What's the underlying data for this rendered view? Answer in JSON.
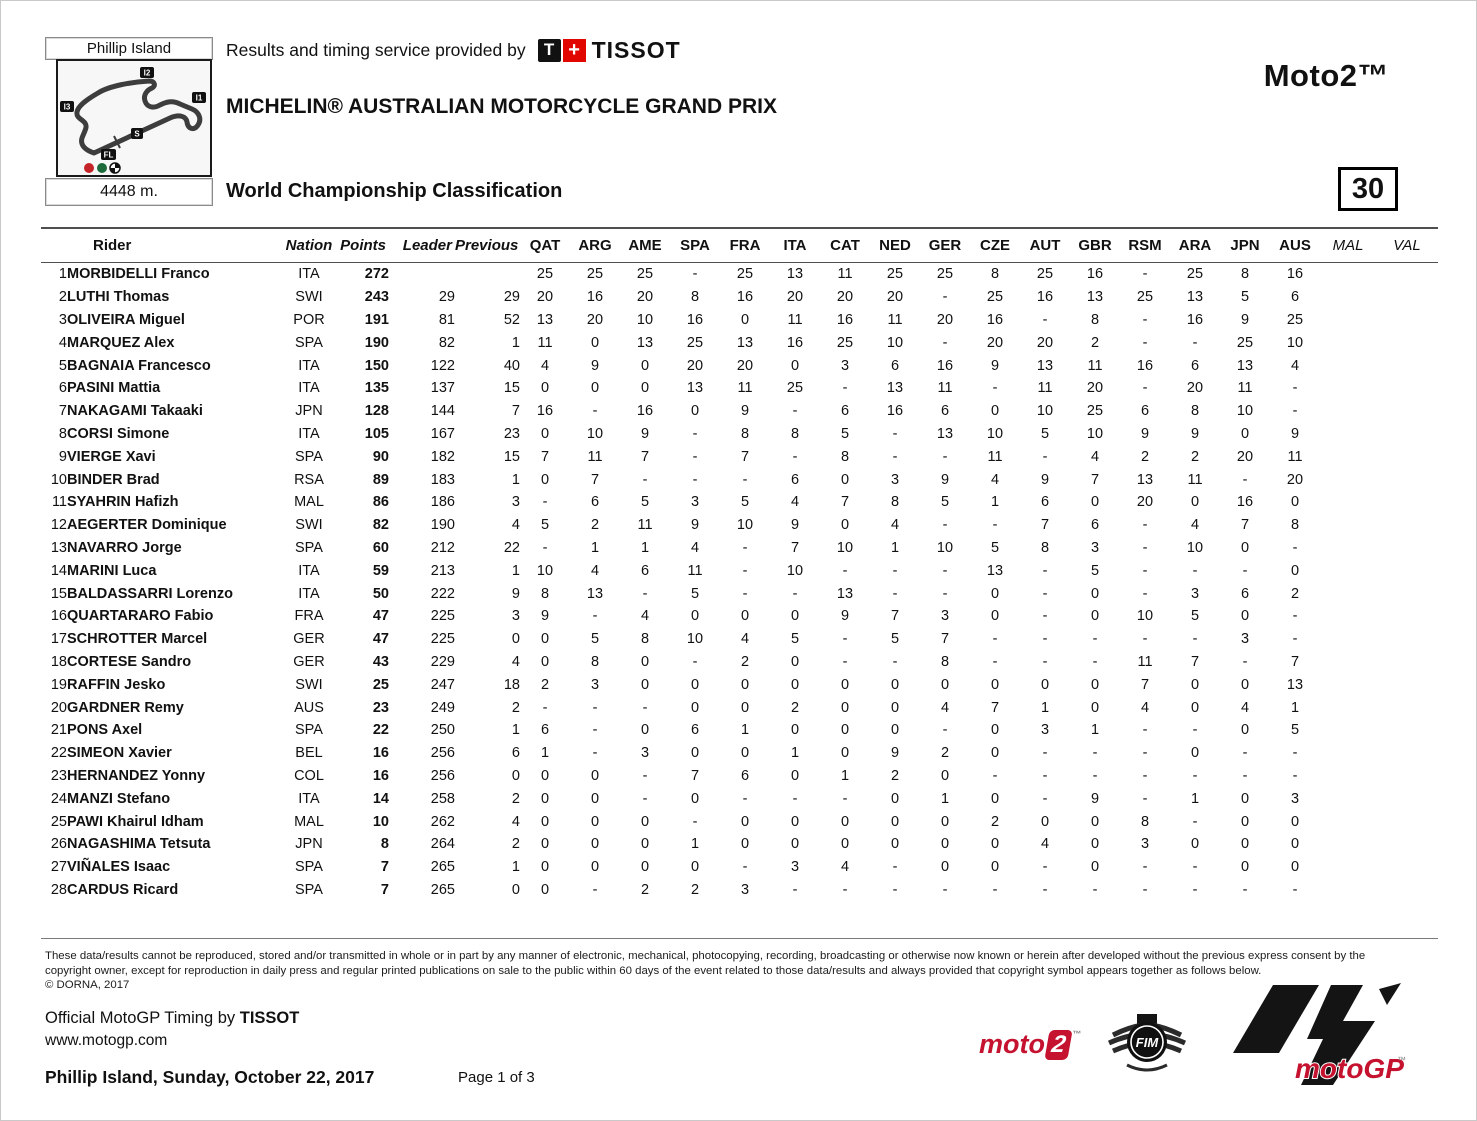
{
  "header": {
    "circuit_name": "Phillip Island",
    "track_length": "4448 m.",
    "service_text": "Results and timing service provided by",
    "tissot_t": "T",
    "tissot_plus": "+",
    "tissot_name": "TISSOT",
    "event_title": "MICHELIN® AUSTRALIAN MOTORCYCLE GRAND PRIX",
    "class_label": "Moto2™",
    "classification_title": "World Championship Classification",
    "sheet_number": "30",
    "map_labels": {
      "i2": "I2",
      "i3": "I3",
      "i1": "I1",
      "s": "S",
      "fl": "FL"
    }
  },
  "table": {
    "rider_header": "Rider",
    "info_columns": [
      "Nation",
      "Points",
      "Leader",
      "Previous"
    ],
    "race_columns": [
      "QAT",
      "ARG",
      "AME",
      "SPA",
      "FRA",
      "ITA",
      "CAT",
      "NED",
      "GER",
      "CZE",
      "AUT",
      "GBR",
      "RSM",
      "ARA",
      "JPN",
      "AUS"
    ],
    "future_race_columns": [
      "MAL",
      "VAL"
    ],
    "rows": [
      {
        "pos": "1",
        "rider": "MORBIDELLI Franco",
        "nation": "ITA",
        "points": "272",
        "leader": "",
        "previous": "",
        "results": [
          "25",
          "25",
          "25",
          "-",
          "25",
          "13",
          "11",
          "25",
          "25",
          "8",
          "25",
          "16",
          "-",
          "25",
          "8",
          "16"
        ]
      },
      {
        "pos": "2",
        "rider": "LUTHI Thomas",
        "nation": "SWI",
        "points": "243",
        "leader": "29",
        "previous": "29",
        "results": [
          "20",
          "16",
          "20",
          "8",
          "16",
          "20",
          "20",
          "20",
          "-",
          "25",
          "16",
          "13",
          "25",
          "13",
          "5",
          "6"
        ]
      },
      {
        "pos": "3",
        "rider": "OLIVEIRA Miguel",
        "nation": "POR",
        "points": "191",
        "leader": "81",
        "previous": "52",
        "results": [
          "13",
          "20",
          "10",
          "16",
          "0",
          "11",
          "16",
          "11",
          "20",
          "16",
          "-",
          "8",
          "-",
          "16",
          "9",
          "25"
        ]
      },
      {
        "pos": "4",
        "rider": "MARQUEZ Alex",
        "nation": "SPA",
        "points": "190",
        "leader": "82",
        "previous": "1",
        "results": [
          "11",
          "0",
          "13",
          "25",
          "13",
          "16",
          "25",
          "10",
          "-",
          "20",
          "20",
          "2",
          "-",
          "-",
          "25",
          "10"
        ]
      },
      {
        "pos": "5",
        "rider": "BAGNAIA Francesco",
        "nation": "ITA",
        "points": "150",
        "leader": "122",
        "previous": "40",
        "results": [
          "4",
          "9",
          "0",
          "20",
          "20",
          "0",
          "3",
          "6",
          "16",
          "9",
          "13",
          "11",
          "16",
          "6",
          "13",
          "4"
        ]
      },
      {
        "pos": "6",
        "rider": "PASINI Mattia",
        "nation": "ITA",
        "points": "135",
        "leader": "137",
        "previous": "15",
        "results": [
          "0",
          "0",
          "0",
          "13",
          "11",
          "25",
          "-",
          "13",
          "11",
          "-",
          "11",
          "20",
          "-",
          "20",
          "11",
          "-"
        ]
      },
      {
        "pos": "7",
        "rider": "NAKAGAMI Takaaki",
        "nation": "JPN",
        "points": "128",
        "leader": "144",
        "previous": "7",
        "results": [
          "16",
          "-",
          "16",
          "0",
          "9",
          "-",
          "6",
          "16",
          "6",
          "0",
          "10",
          "25",
          "6",
          "8",
          "10",
          "-"
        ]
      },
      {
        "pos": "8",
        "rider": "CORSI Simone",
        "nation": "ITA",
        "points": "105",
        "leader": "167",
        "previous": "23",
        "results": [
          "0",
          "10",
          "9",
          "-",
          "8",
          "8",
          "5",
          "-",
          "13",
          "10",
          "5",
          "10",
          "9",
          "9",
          "0",
          "9"
        ]
      },
      {
        "pos": "9",
        "rider": "VIERGE Xavi",
        "nation": "SPA",
        "points": "90",
        "leader": "182",
        "previous": "15",
        "results": [
          "7",
          "11",
          "7",
          "-",
          "7",
          "-",
          "8",
          "-",
          "-",
          "11",
          "-",
          "4",
          "2",
          "2",
          "20",
          "11"
        ]
      },
      {
        "pos": "10",
        "rider": "BINDER Brad",
        "nation": "RSA",
        "points": "89",
        "leader": "183",
        "previous": "1",
        "results": [
          "0",
          "7",
          "-",
          "-",
          "-",
          "6",
          "0",
          "3",
          "9",
          "4",
          "9",
          "7",
          "13",
          "11",
          "-",
          "20"
        ]
      },
      {
        "pos": "11",
        "rider": "SYAHRIN Hafizh",
        "nation": "MAL",
        "points": "86",
        "leader": "186",
        "previous": "3",
        "results": [
          "-",
          "6",
          "5",
          "3",
          "5",
          "4",
          "7",
          "8",
          "5",
          "1",
          "6",
          "0",
          "20",
          "0",
          "16",
          "0"
        ]
      },
      {
        "pos": "12",
        "rider": "AEGERTER Dominique",
        "nation": "SWI",
        "points": "82",
        "leader": "190",
        "previous": "4",
        "results": [
          "5",
          "2",
          "11",
          "9",
          "10",
          "9",
          "0",
          "4",
          "-",
          "-",
          "7",
          "6",
          "-",
          "4",
          "7",
          "8"
        ]
      },
      {
        "pos": "13",
        "rider": "NAVARRO Jorge",
        "nation": "SPA",
        "points": "60",
        "leader": "212",
        "previous": "22",
        "results": [
          "-",
          "1",
          "1",
          "4",
          "-",
          "7",
          "10",
          "1",
          "10",
          "5",
          "8",
          "3",
          "-",
          "10",
          "0",
          "-"
        ]
      },
      {
        "pos": "14",
        "rider": "MARINI Luca",
        "nation": "ITA",
        "points": "59",
        "leader": "213",
        "previous": "1",
        "results": [
          "10",
          "4",
          "6",
          "11",
          "-",
          "10",
          "-",
          "-",
          "-",
          "13",
          "-",
          "5",
          "-",
          "-",
          "-",
          "0"
        ]
      },
      {
        "pos": "15",
        "rider": "BALDASSARRI Lorenzo",
        "nation": "ITA",
        "points": "50",
        "leader": "222",
        "previous": "9",
        "results": [
          "8",
          "13",
          "-",
          "5",
          "-",
          "-",
          "13",
          "-",
          "-",
          "0",
          "-",
          "0",
          "-",
          "3",
          "6",
          "2"
        ]
      },
      {
        "pos": "16",
        "rider": "QUARTARARO Fabio",
        "nation": "FRA",
        "points": "47",
        "leader": "225",
        "previous": "3",
        "results": [
          "9",
          "-",
          "4",
          "0",
          "0",
          "0",
          "9",
          "7",
          "3",
          "0",
          "-",
          "0",
          "10",
          "5",
          "0",
          "-"
        ]
      },
      {
        "pos": "17",
        "rider": "SCHROTTER Marcel",
        "nation": "GER",
        "points": "47",
        "leader": "225",
        "previous": "0",
        "results": [
          "0",
          "5",
          "8",
          "10",
          "4",
          "5",
          "-",
          "5",
          "7",
          "-",
          "-",
          "-",
          "-",
          "-",
          "3",
          "-"
        ]
      },
      {
        "pos": "18",
        "rider": "CORTESE Sandro",
        "nation": "GER",
        "points": "43",
        "leader": "229",
        "previous": "4",
        "results": [
          "0",
          "8",
          "0",
          "-",
          "2",
          "0",
          "-",
          "-",
          "8",
          "-",
          "-",
          "-",
          "11",
          "7",
          "-",
          "7"
        ]
      },
      {
        "pos": "19",
        "rider": "RAFFIN Jesko",
        "nation": "SWI",
        "points": "25",
        "leader": "247",
        "previous": "18",
        "results": [
          "2",
          "3",
          "0",
          "0",
          "0",
          "0",
          "0",
          "0",
          "0",
          "0",
          "0",
          "0",
          "7",
          "0",
          "0",
          "13"
        ]
      },
      {
        "pos": "20",
        "rider": "GARDNER Remy",
        "nation": "AUS",
        "points": "23",
        "leader": "249",
        "previous": "2",
        "results": [
          "-",
          "-",
          "-",
          "0",
          "0",
          "2",
          "0",
          "0",
          "4",
          "7",
          "1",
          "0",
          "4",
          "0",
          "4",
          "1"
        ]
      },
      {
        "pos": "21",
        "rider": "PONS Axel",
        "nation": "SPA",
        "points": "22",
        "leader": "250",
        "previous": "1",
        "results": [
          "6",
          "-",
          "0",
          "6",
          "1",
          "0",
          "0",
          "0",
          "-",
          "0",
          "3",
          "1",
          "-",
          "-",
          "0",
          "5"
        ]
      },
      {
        "pos": "22",
        "rider": "SIMEON Xavier",
        "nation": "BEL",
        "points": "16",
        "leader": "256",
        "previous": "6",
        "results": [
          "1",
          "-",
          "3",
          "0",
          "0",
          "1",
          "0",
          "9",
          "2",
          "0",
          "-",
          "-",
          "-",
          "0",
          "-",
          "-"
        ]
      },
      {
        "pos": "23",
        "rider": "HERNANDEZ Yonny",
        "nation": "COL",
        "points": "16",
        "leader": "256",
        "previous": "0",
        "results": [
          "0",
          "0",
          "-",
          "7",
          "6",
          "0",
          "1",
          "2",
          "0",
          "-",
          "-",
          "-",
          "-",
          "-",
          "-",
          "-"
        ]
      },
      {
        "pos": "24",
        "rider": "MANZI Stefano",
        "nation": "ITA",
        "points": "14",
        "leader": "258",
        "previous": "2",
        "results": [
          "0",
          "0",
          "-",
          "0",
          "-",
          "-",
          "-",
          "0",
          "1",
          "0",
          "-",
          "9",
          "-",
          "1",
          "0",
          "3"
        ]
      },
      {
        "pos": "25",
        "rider": "PAWI Khairul Idham",
        "nation": "MAL",
        "points": "10",
        "leader": "262",
        "previous": "4",
        "results": [
          "0",
          "0",
          "0",
          "-",
          "0",
          "0",
          "0",
          "0",
          "0",
          "2",
          "0",
          "0",
          "8",
          "-",
          "0",
          "0"
        ]
      },
      {
        "pos": "26",
        "rider": "NAGASHIMA Tetsuta",
        "nation": "JPN",
        "points": "8",
        "leader": "264",
        "previous": "2",
        "results": [
          "0",
          "0",
          "0",
          "1",
          "0",
          "0",
          "0",
          "0",
          "0",
          "0",
          "4",
          "0",
          "3",
          "0",
          "0",
          "0"
        ]
      },
      {
        "pos": "27",
        "rider": "VIÑALES Isaac",
        "nation": "SPA",
        "points": "7",
        "leader": "265",
        "previous": "1",
        "results": [
          "0",
          "0",
          "0",
          "0",
          "-",
          "3",
          "4",
          "-",
          "0",
          "0",
          "-",
          "0",
          "-",
          "-",
          "0",
          "0"
        ]
      },
      {
        "pos": "28",
        "rider": "CARDUS Ricard",
        "nation": "SPA",
        "points": "7",
        "leader": "265",
        "previous": "0",
        "results": [
          "0",
          "-",
          "2",
          "2",
          "3",
          "-",
          "-",
          "-",
          "-",
          "-",
          "-",
          "-",
          "-",
          "-",
          "-",
          "-"
        ]
      }
    ]
  },
  "footer": {
    "disclaimer_line1": "These data/results cannot be reproduced, stored and/or transmitted in whole or in part by any manner of electronic, mechanical, photocopying, recording, broadcasting or otherwise now known or herein after developed without the previous express consent by the",
    "disclaimer_line2": "copyright owner, except for reproduction in daily press and regular printed publications on sale to the public within 60 days of the event related to those data/results and always provided that copyright symbol appears together as follows below.",
    "disclaimer_line3": "© DORNA, 2017",
    "timing_prefix": "Official MotoGP Timing by",
    "tissot_name": "TISSOT",
    "website": "www.motogp.com",
    "location_date": "Phillip Island, Sunday, October 22, 2017",
    "page_label": "Page 1 of 3",
    "logos": {
      "moto2_prefix": "moto",
      "moto2_digit": "2",
      "moto2_tm": "™",
      "fim_text": "FIM",
      "motogp_text": "motoGP",
      "motogp_tm": "™"
    }
  }
}
